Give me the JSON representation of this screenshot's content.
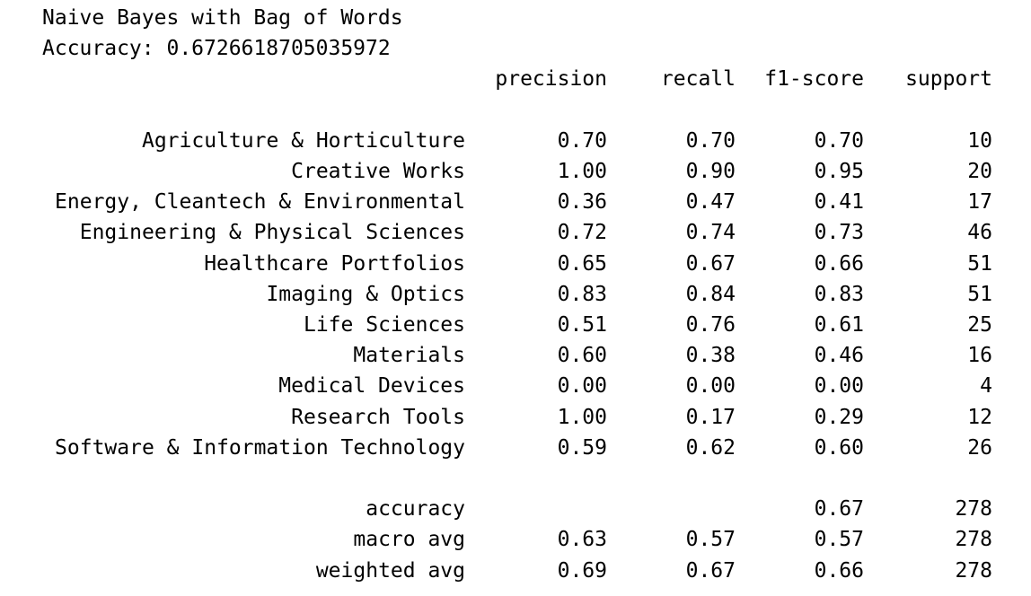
{
  "output": {
    "title": "Naive Bayes with Bag of Words",
    "accuracy_line": "Accuracy: 0.6726618705035972",
    "headers": {
      "precision": "precision",
      "recall": "recall",
      "f1": "f1-score",
      "support": "support"
    },
    "rows": [
      {
        "label": "Agriculture & Horticulture",
        "precision": "0.70",
        "recall": "0.70",
        "f1": "0.70",
        "support": "10"
      },
      {
        "label": "Creative Works",
        "precision": "1.00",
        "recall": "0.90",
        "f1": "0.95",
        "support": "20"
      },
      {
        "label": "Energy, Cleantech & Environmental",
        "precision": "0.36",
        "recall": "0.47",
        "f1": "0.41",
        "support": "17"
      },
      {
        "label": "Engineering & Physical Sciences",
        "precision": "0.72",
        "recall": "0.74",
        "f1": "0.73",
        "support": "46"
      },
      {
        "label": "Healthcare Portfolios",
        "precision": "0.65",
        "recall": "0.67",
        "f1": "0.66",
        "support": "51"
      },
      {
        "label": "Imaging & Optics",
        "precision": "0.83",
        "recall": "0.84",
        "f1": "0.83",
        "support": "51"
      },
      {
        "label": "Life Sciences",
        "precision": "0.51",
        "recall": "0.76",
        "f1": "0.61",
        "support": "25"
      },
      {
        "label": "Materials",
        "precision": "0.60",
        "recall": "0.38",
        "f1": "0.46",
        "support": "16"
      },
      {
        "label": "Medical Devices",
        "precision": "0.00",
        "recall": "0.00",
        "f1": "0.00",
        "support": "4"
      },
      {
        "label": "Research Tools",
        "precision": "1.00",
        "recall": "0.17",
        "f1": "0.29",
        "support": "12"
      },
      {
        "label": "Software & Information Technology",
        "precision": "0.59",
        "recall": "0.62",
        "f1": "0.60",
        "support": "26"
      }
    ],
    "summary": [
      {
        "label": "accuracy",
        "precision": "",
        "recall": "",
        "f1": "0.67",
        "support": "278"
      },
      {
        "label": "macro avg",
        "precision": "0.63",
        "recall": "0.57",
        "f1": "0.57",
        "support": "278"
      },
      {
        "label": "weighted avg",
        "precision": "0.69",
        "recall": "0.67",
        "f1": "0.66",
        "support": "278"
      }
    ]
  }
}
